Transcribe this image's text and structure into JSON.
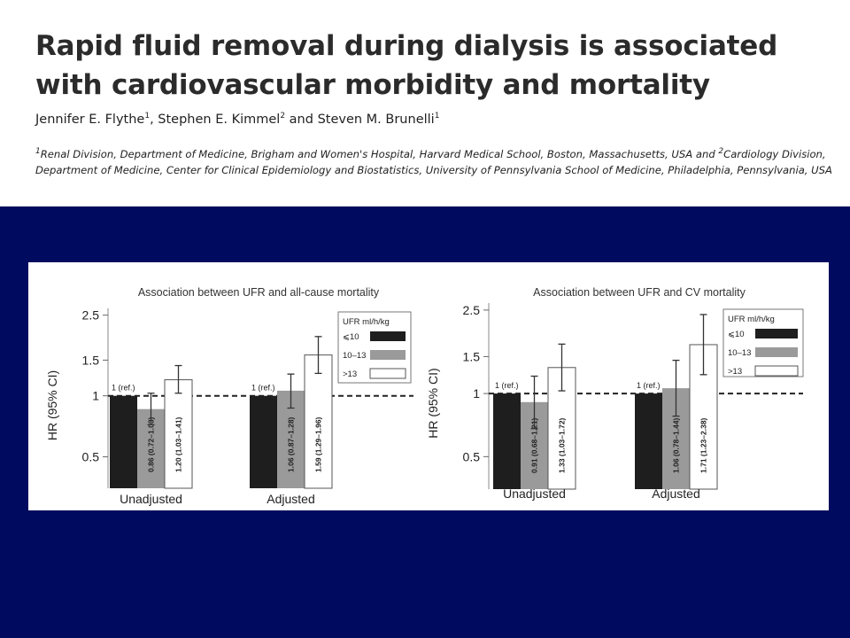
{
  "paper": {
    "title": "Rapid fluid removal during dialysis is associated with cardiovascular morbidity and mortality",
    "authors": [
      {
        "name": "Jennifer E. Flythe",
        "sup": "1"
      },
      {
        "name": "Stephen E. Kimmel",
        "sup": "2"
      },
      {
        "name": "Steven M. Brunelli",
        "sup": "1"
      }
    ],
    "author_separators": [
      ", ",
      " and "
    ],
    "affiliations": [
      {
        "sup": "1",
        "text": "Renal Division, Department of Medicine, Brigham and Women's Hospital, Harvard Medical School, Boston, Massachusetts, USA and "
      },
      {
        "sup": "2",
        "text": "Cardiology Division, Department of Medicine, Center for Clinical Epidemiology and Biostatistics, University of Pennsylvania School of Medicine, Philadelphia, Pennsylvania, USA"
      }
    ]
  },
  "colors": {
    "slide_background": "#000a5e",
    "bar_le10": "#1e1e1e",
    "bar_10_13": "#9a9a9a",
    "bar_gt13": "#ffffff"
  },
  "chart_data": [
    {
      "type": "bar",
      "title": "Association between UFR and all-cause mortality",
      "ylabel": "HR (95% CI)",
      "y_scale": "log",
      "ylim": [
        0.35,
        2.7
      ],
      "yticks": [
        "2.5",
        "1.5",
        "1",
        "0.5"
      ],
      "reference_line": 1,
      "categories": [
        "Unadjusted",
        "Adjusted"
      ],
      "legend": {
        "title": "UFR ml/h/kg",
        "position": "top-right"
      },
      "series": [
        {
          "name": "⩽10",
          "values": [
            1,
            1
          ],
          "labels": [
            "1 (ref.)",
            "1 (ref.)"
          ]
        },
        {
          "name": "10–13",
          "values": [
            0.86,
            1.06
          ],
          "ci": [
            [
              0.72,
              1.03
            ],
            [
              0.87,
              1.28
            ]
          ],
          "labels": [
            "0.86 (0.72–1.03)",
            "1.06 (0.87–1.28)"
          ]
        },
        {
          "name": ">13",
          "values": [
            1.2,
            1.59
          ],
          "ci": [
            [
              1.03,
              1.41
            ],
            [
              1.29,
              1.96
            ]
          ],
          "labels": [
            "1.20 (1.03–1.41)",
            "1.59 (1.29–1.96)"
          ]
        }
      ]
    },
    {
      "type": "bar",
      "title": "Association between UFR and CV mortality",
      "ylabel": "HR (95% CI)",
      "y_scale": "log",
      "ylim": [
        0.35,
        2.7
      ],
      "yticks": [
        "2.5",
        "1.5",
        "1",
        "0.5"
      ],
      "reference_line": 1,
      "categories": [
        "Unadjusted",
        "Adjusted"
      ],
      "legend": {
        "title": "UFR ml/h/kg",
        "position": "top-right"
      },
      "series": [
        {
          "name": "⩽10",
          "values": [
            1,
            1
          ],
          "labels": [
            "1 (ref.)",
            "1 (ref.)"
          ]
        },
        {
          "name": "10–13",
          "values": [
            0.91,
            1.06
          ],
          "ci": [
            [
              0.68,
              1.21
            ],
            [
              0.78,
              1.44
            ]
          ],
          "labels": [
            "0.91 (0.68–1.21)",
            "1.06 (0.78–1.44)"
          ]
        },
        {
          "name": ">13",
          "values": [
            1.33,
            1.71
          ],
          "ci": [
            [
              1.03,
              1.72
            ],
            [
              1.23,
              2.38
            ]
          ],
          "labels": [
            "1.33 (1.03–1.72)",
            "1.71 (1.23–2.38)"
          ]
        }
      ]
    }
  ]
}
